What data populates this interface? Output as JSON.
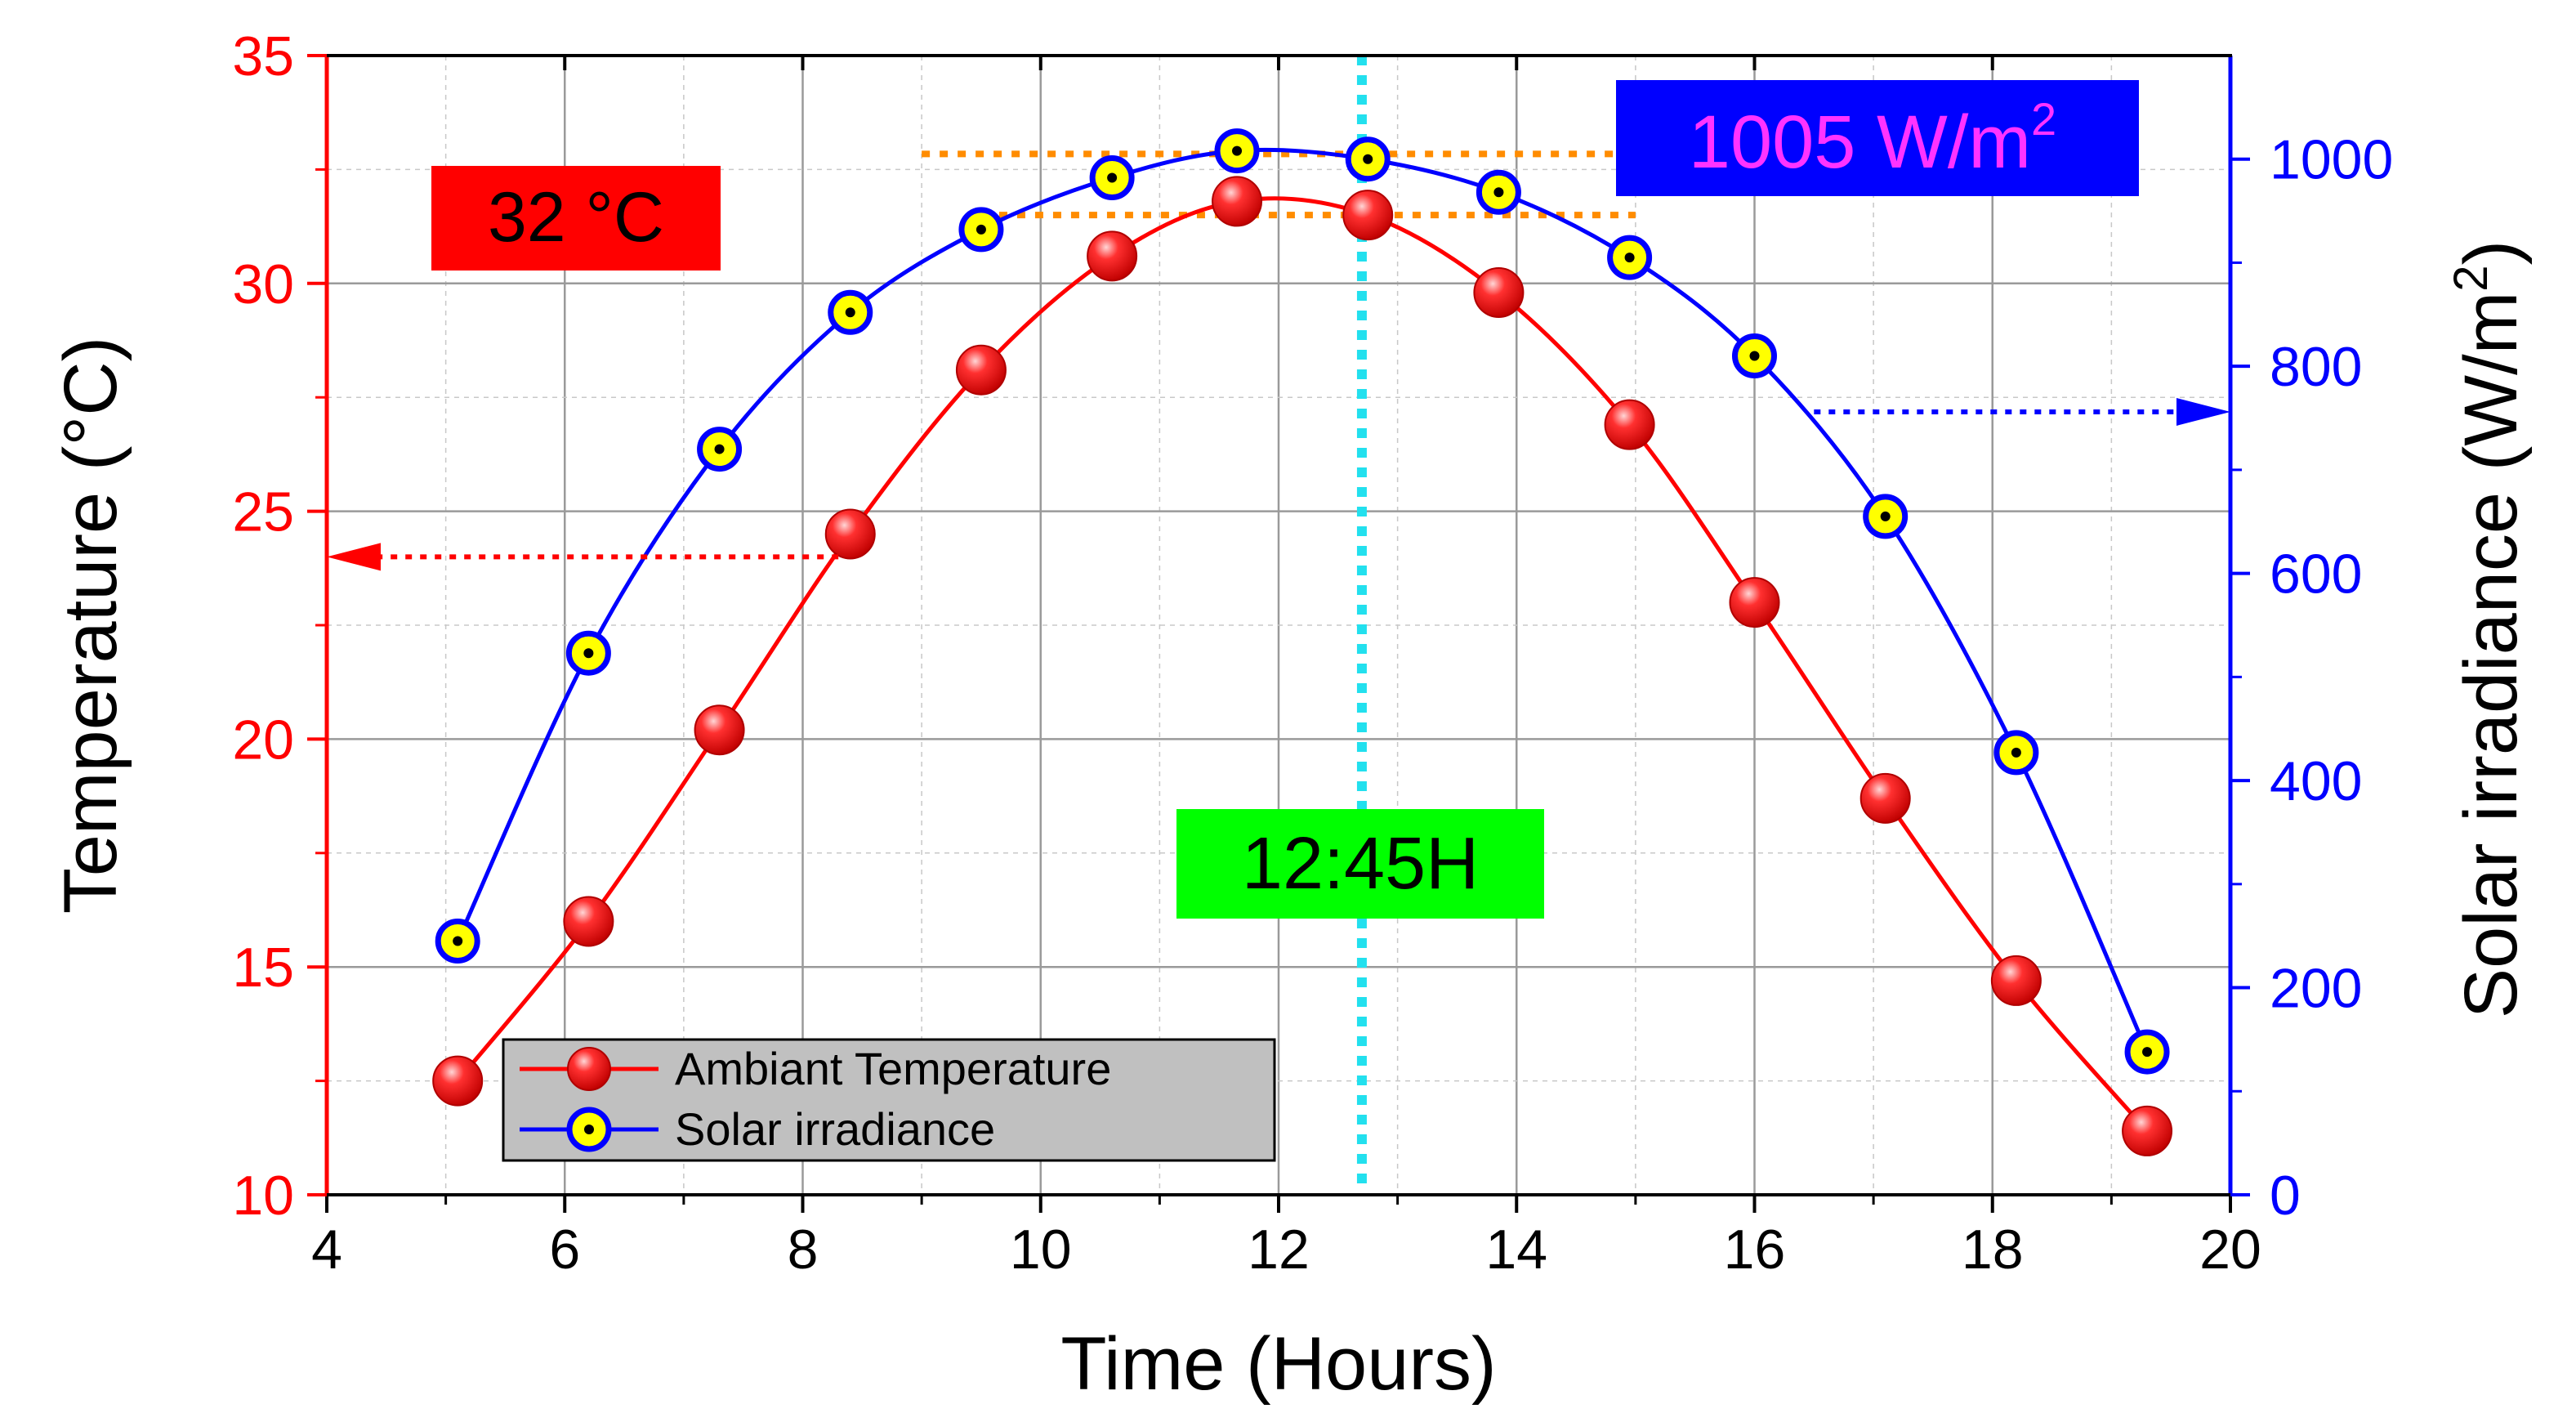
{
  "chart_data": {
    "type": "line",
    "title": "",
    "xlabel": "Time (Hours)",
    "ylabel": "Temperature (°C)",
    "y2label": "Solar irradiance (W/m²)",
    "y2label_main": "Solar irradiance (W/m",
    "y2label_sup": "2",
    "y2label_close": ")",
    "xlim": [
      4,
      20
    ],
    "ylim": [
      10,
      35
    ],
    "y2lim": [
      0,
      1100
    ],
    "xticks": [
      4,
      6,
      8,
      10,
      12,
      14,
      16,
      18,
      20
    ],
    "yticks": [
      10,
      15,
      20,
      25,
      30,
      35
    ],
    "y2ticks": [
      0,
      200,
      400,
      600,
      800,
      1000
    ],
    "grid": true,
    "legend_position": "bottom-left",
    "colors": {
      "temperature": "#ff0000",
      "irradiance": "#0000ff",
      "marker_fill": "#ffff00",
      "noon_line": "#22e0ee",
      "peak_lines": "#ff8c00"
    },
    "series": [
      {
        "name": "Ambiant Temperature",
        "axis": "left",
        "x": [
          5.1,
          6.2,
          7.3,
          8.4,
          9.5,
          10.6,
          11.65,
          12.75,
          13.85,
          14.95,
          16.0,
          17.1,
          18.2,
          19.3
        ],
        "values": [
          12.5,
          16.0,
          20.2,
          24.5,
          28.1,
          30.6,
          31.8,
          31.5,
          29.8,
          26.9,
          23.0,
          18.7,
          14.7,
          11.4
        ]
      },
      {
        "name": "Solar irradiance",
        "axis": "right",
        "x": [
          5.1,
          6.2,
          7.3,
          8.4,
          9.5,
          10.6,
          11.65,
          12.75,
          13.85,
          14.95,
          16.0,
          17.1,
          18.2,
          19.3
        ],
        "values": [
          245,
          523,
          720,
          852,
          932,
          982,
          1008,
          1000,
          968,
          905,
          810,
          655,
          427,
          138
        ]
      }
    ],
    "annotations": {
      "temp_peak": {
        "label": "32 °C",
        "value": 31.5,
        "bg": "#ff0000",
        "x_from": 9.5,
        "x_to": 15.0
      },
      "irr_peak": {
        "label_main": "1005 W/m",
        "label_sup": "2",
        "value": 1005,
        "bg": "#0000ff",
        "color": "#ff33ff",
        "x_from": 9.0,
        "x_to": 15.0
      },
      "noon": {
        "label": "12:45H",
        "x": 12.7,
        "bg": "#00ff00"
      },
      "left_arrow": {
        "y": 24.0,
        "x_from": 8.3,
        "x_to": 4.0
      },
      "right_arrow": {
        "y": 756,
        "x_from": 16.5,
        "x_to": 20.0
      }
    }
  }
}
